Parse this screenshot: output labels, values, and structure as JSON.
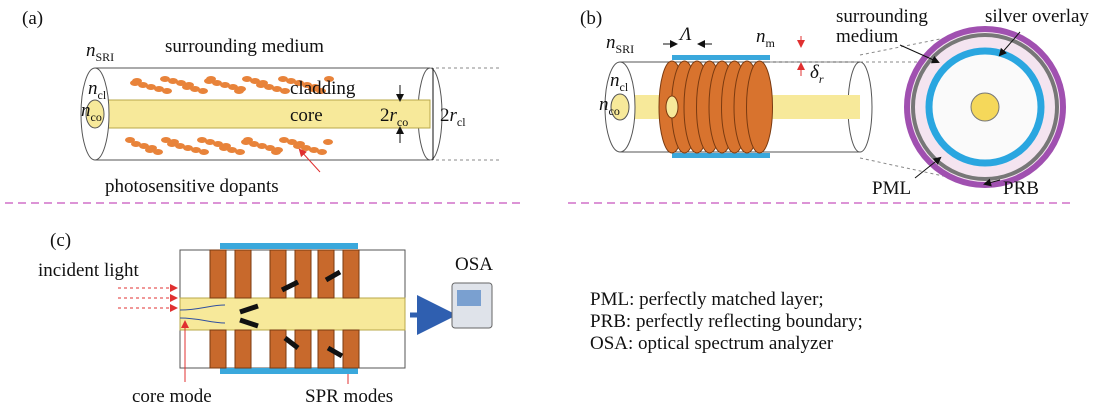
{
  "panel_a": {
    "label": "(a)",
    "n_sri": {
      "symbol": "n",
      "sub": "SRI"
    },
    "surrounding_medium": "surrounding medium",
    "n_cl": {
      "symbol": "n",
      "sub": "cl"
    },
    "n_co": {
      "symbol": "n",
      "sub": "co"
    },
    "cladding": "cladding",
    "core": "core",
    "core_diameter": {
      "prefix": "2",
      "symbol": "r",
      "sub": "co"
    },
    "cladding_diameter": {
      "prefix": "2",
      "symbol": "r",
      "sub": "cl"
    },
    "dopants": "photosensitive dopants"
  },
  "panel_b": {
    "label": "(b)",
    "n_sri": {
      "symbol": "n",
      "sub": "SRI"
    },
    "period": "Λ",
    "n_m": {
      "symbol": "n",
      "sub": "m"
    },
    "surrounding_medium": [
      "surrounding",
      "medium"
    ],
    "silver_overlay": "silver overlay",
    "n_cl": {
      "symbol": "n",
      "sub": "cl"
    },
    "n_co": {
      "symbol": "n",
      "sub": "co"
    },
    "thickness": {
      "symbol": "δ",
      "sub": "r"
    },
    "pml": "PML",
    "prb": "PRB"
  },
  "panel_c": {
    "label": "(c)",
    "incident_light": "incident light",
    "osa": "OSA",
    "core_mode": "core mode",
    "spr_modes": "SPR modes"
  },
  "legend": [
    "PML: perfectly matched layer;",
    "PRB: perfectly reflecting boundary;",
    "OSA: optical spectrum analyzer"
  ]
}
